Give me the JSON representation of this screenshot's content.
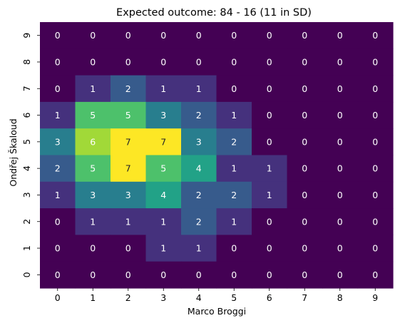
{
  "chart_data": {
    "type": "heatmap",
    "title": "Expected outcome: 84 - 16 (11 in SD)",
    "xlabel": "Marco Broggi",
    "ylabel": "Ondřej Škaloud",
    "x_categories": [
      "0",
      "1",
      "2",
      "3",
      "4",
      "5",
      "6",
      "7",
      "8",
      "9"
    ],
    "y_categories": [
      "0",
      "1",
      "2",
      "3",
      "4",
      "5",
      "6",
      "7",
      "8",
      "9"
    ],
    "rows_top_to_bottom": [
      {
        "y": "9",
        "values": [
          0,
          0,
          0,
          0,
          0,
          0,
          0,
          0,
          0,
          0
        ]
      },
      {
        "y": "8",
        "values": [
          0,
          0,
          0,
          0,
          0,
          0,
          0,
          0,
          0,
          0
        ]
      },
      {
        "y": "7",
        "values": [
          0,
          1,
          2,
          1,
          1,
          0,
          0,
          0,
          0,
          0
        ]
      },
      {
        "y": "6",
        "values": [
          1,
          5,
          5,
          3,
          2,
          1,
          0,
          0,
          0,
          0
        ]
      },
      {
        "y": "5",
        "values": [
          3,
          6,
          7,
          7,
          3,
          2,
          0,
          0,
          0,
          0
        ]
      },
      {
        "y": "4",
        "values": [
          2,
          5,
          7,
          5,
          4,
          1,
          1,
          0,
          0,
          0
        ]
      },
      {
        "y": "3",
        "values": [
          1,
          3,
          3,
          4,
          2,
          2,
          1,
          0,
          0,
          0
        ]
      },
      {
        "y": "2",
        "values": [
          0,
          1,
          1,
          1,
          2,
          1,
          0,
          0,
          0,
          0
        ]
      },
      {
        "y": "1",
        "values": [
          0,
          0,
          0,
          1,
          1,
          0,
          0,
          0,
          0,
          0
        ]
      },
      {
        "y": "0",
        "values": [
          0,
          0,
          0,
          0,
          0,
          0,
          0,
          0,
          0,
          0
        ]
      }
    ],
    "colormap": "viridis",
    "color_range": [
      0,
      7
    ],
    "colors": {
      "viridis": [
        "#440154",
        "#482878",
        "#3e4989",
        "#31688e",
        "#26828e",
        "#1f9e89",
        "#35b779",
        "#6ece58",
        "#b5de2b",
        "#fde725"
      ],
      "low_text": "#ffffff",
      "high_text": "#262626",
      "axis_text": "#000000"
    },
    "colorbar": false,
    "grid": false
  }
}
